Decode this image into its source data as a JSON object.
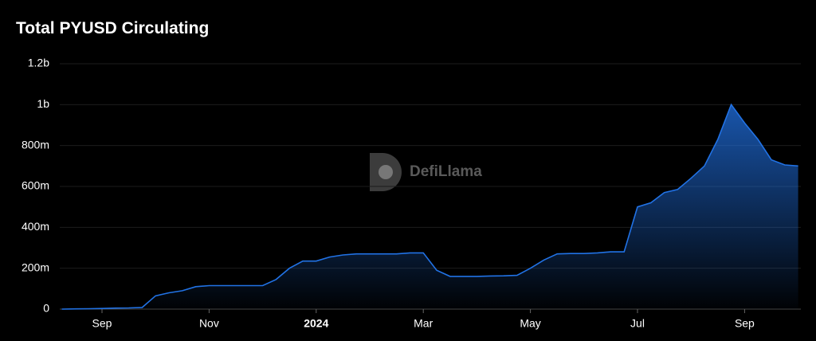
{
  "chart_data": {
    "type": "area",
    "title": "Total PYUSD Circulating",
    "watermark": "DefiLlama",
    "categories": [
      null,
      null,
      null,
      "Sep",
      null,
      null,
      null,
      null,
      null,
      null,
      null,
      "Nov",
      null,
      null,
      null,
      null,
      null,
      null,
      null,
      "2024",
      null,
      null,
      null,
      null,
      null,
      null,
      null,
      "Mar",
      null,
      null,
      null,
      null,
      null,
      null,
      null,
      "May",
      null,
      null,
      null,
      null,
      null,
      null,
      null,
      "Jul",
      null,
      null,
      null,
      null,
      null,
      null,
      null,
      "Sep",
      null,
      null,
      null,
      null
    ],
    "values": [
      0,
      1000000,
      2000000,
      3000000,
      5000000,
      6000000,
      8000000,
      65000000,
      80000000,
      90000000,
      110000000,
      115000000,
      115000000,
      115000000,
      115000000,
      115000000,
      145000000,
      200000000,
      235000000,
      235000000,
      255000000,
      265000000,
      270000000,
      270000000,
      270000000,
      270000000,
      275000000,
      275000000,
      190000000,
      160000000,
      160000000,
      160000000,
      162000000,
      163000000,
      165000000,
      200000000,
      240000000,
      270000000,
      272000000,
      272000000,
      275000000,
      280000000,
      280000000,
      500000000,
      520000000,
      570000000,
      585000000,
      640000000,
      700000000,
      830000000,
      1000000000,
      910000000,
      830000000,
      730000000,
      705000000,
      700000000
    ],
    "color": "#2172e5",
    "ylim": [
      0,
      1200000000
    ],
    "yticks": [
      0,
      {
        "value": 200000000,
        "label": "200m"
      },
      {
        "value": 400000000,
        "label": "400m"
      },
      {
        "value": 600000000,
        "label": "600m"
      },
      {
        "value": 800000000,
        "label": "800m"
      },
      {
        "value": 1000000000,
        "label": "1b"
      },
      {
        "value": 1200000000,
        "label": "1.2b"
      }
    ],
    "grid": true
  }
}
